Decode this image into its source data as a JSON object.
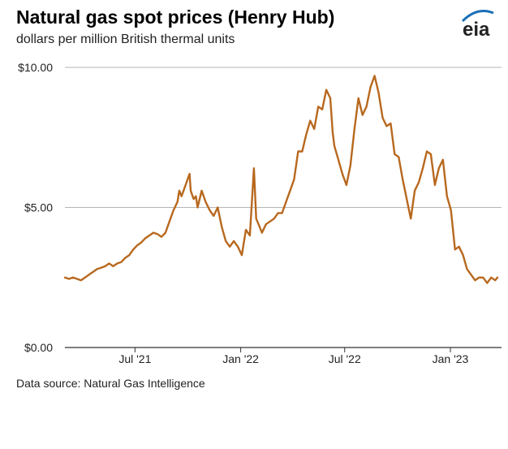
{
  "header": {
    "title": "Natural gas spot prices (Henry Hub)",
    "subtitle": "dollars per million British thermal units",
    "logo_text": "eia",
    "logo_color": "#1a6fb5"
  },
  "footer": {
    "source": "Data source: Natural Gas Intelligence"
  },
  "chart_data": {
    "type": "line",
    "title": "Natural gas spot prices (Henry Hub)",
    "subtitle": "dollars per million British thermal units",
    "xlabel": "",
    "ylabel": "",
    "y_ticks": [
      {
        "value": 0,
        "label": "$0.00"
      },
      {
        "value": 5,
        "label": "$5.00"
      },
      {
        "value": 10,
        "label": "$10.00"
      }
    ],
    "x_ticks": [
      {
        "value": "2021-07-01",
        "label": "Jul '21"
      },
      {
        "value": "2022-01-01",
        "label": "Jan '22"
      },
      {
        "value": "2022-07-01",
        "label": "Jul '22"
      },
      {
        "value": "2023-01-01",
        "label": "Jan '23"
      }
    ],
    "xlim": [
      "2021-03-01",
      "2023-03-31"
    ],
    "ylim": [
      0,
      10
    ],
    "grid": "horizontal",
    "legend": "none",
    "line_color": "#b8681e",
    "series": [
      {
        "x": [
          "2021-03-01",
          "2021-03-08",
          "2021-03-15",
          "2021-03-22",
          "2021-03-29",
          "2021-04-05",
          "2021-04-12",
          "2021-04-19",
          "2021-04-26",
          "2021-05-03",
          "2021-05-10",
          "2021-05-17",
          "2021-05-24",
          "2021-05-31",
          "2021-06-07",
          "2021-06-14",
          "2021-06-21",
          "2021-06-28",
          "2021-07-05",
          "2021-07-12",
          "2021-07-19",
          "2021-07-26",
          "2021-08-02",
          "2021-08-09",
          "2021-08-16",
          "2021-08-23",
          "2021-08-30",
          "2021-09-06",
          "2021-09-13",
          "2021-09-16",
          "2021-09-20",
          "2021-09-27",
          "2021-10-04",
          "2021-10-06",
          "2021-10-11",
          "2021-10-15",
          "2021-10-18",
          "2021-10-25",
          "2021-11-01",
          "2021-11-08",
          "2021-11-15",
          "2021-11-22",
          "2021-11-29",
          "2021-12-06",
          "2021-12-13",
          "2021-12-20",
          "2021-12-27",
          "2022-01-03",
          "2022-01-10",
          "2022-01-17",
          "2022-01-24",
          "2022-01-28",
          "2022-02-01",
          "2022-02-07",
          "2022-02-14",
          "2022-02-21",
          "2022-02-28",
          "2022-03-07",
          "2022-03-14",
          "2022-03-21",
          "2022-03-28",
          "2022-04-04",
          "2022-04-11",
          "2022-04-18",
          "2022-04-25",
          "2022-05-02",
          "2022-05-09",
          "2022-05-16",
          "2022-05-23",
          "2022-05-30",
          "2022-06-06",
          "2022-06-10",
          "2022-06-13",
          "2022-06-20",
          "2022-06-27",
          "2022-07-04",
          "2022-07-11",
          "2022-07-18",
          "2022-07-25",
          "2022-08-01",
          "2022-08-08",
          "2022-08-15",
          "2022-08-22",
          "2022-08-29",
          "2022-09-05",
          "2022-09-12",
          "2022-09-19",
          "2022-09-26",
          "2022-10-03",
          "2022-10-10",
          "2022-10-17",
          "2022-10-24",
          "2022-10-31",
          "2022-11-07",
          "2022-11-14",
          "2022-11-21",
          "2022-11-28",
          "2022-12-05",
          "2022-12-12",
          "2022-12-19",
          "2022-12-26",
          "2023-01-02",
          "2023-01-09",
          "2023-01-16",
          "2023-01-23",
          "2023-01-30",
          "2023-02-06",
          "2023-02-13",
          "2023-02-20",
          "2023-02-27",
          "2023-03-06",
          "2023-03-13",
          "2023-03-20",
          "2023-03-24"
        ],
        "y": [
          2.5,
          2.45,
          2.5,
          2.45,
          2.4,
          2.5,
          2.6,
          2.7,
          2.8,
          2.85,
          2.9,
          3.0,
          2.9,
          3.0,
          3.05,
          3.2,
          3.3,
          3.5,
          3.65,
          3.75,
          3.9,
          4.0,
          4.1,
          4.05,
          3.95,
          4.1,
          4.5,
          4.9,
          5.2,
          5.6,
          5.4,
          5.8,
          6.2,
          5.6,
          5.3,
          5.4,
          5.0,
          5.6,
          5.2,
          4.9,
          4.7,
          5.0,
          4.3,
          3.8,
          3.6,
          3.8,
          3.6,
          3.3,
          4.2,
          4.0,
          6.4,
          4.6,
          4.4,
          4.1,
          4.4,
          4.5,
          4.6,
          4.8,
          4.8,
          5.2,
          5.6,
          6.0,
          7.0,
          7.0,
          7.6,
          8.1,
          7.8,
          8.6,
          8.5,
          9.2,
          8.9,
          7.7,
          7.2,
          6.7,
          6.2,
          5.8,
          6.5,
          7.8,
          8.9,
          8.3,
          8.6,
          9.3,
          9.7,
          9.1,
          8.2,
          7.9,
          8.0,
          6.9,
          6.8,
          6.0,
          5.3,
          4.6,
          5.6,
          5.9,
          6.4,
          7.0,
          6.9,
          5.8,
          6.4,
          6.7,
          5.4,
          4.9,
          3.5,
          3.6,
          3.3,
          2.8,
          2.6,
          2.4,
          2.5,
          2.5,
          2.3,
          2.5,
          2.4,
          2.5
        ]
      }
    ]
  }
}
